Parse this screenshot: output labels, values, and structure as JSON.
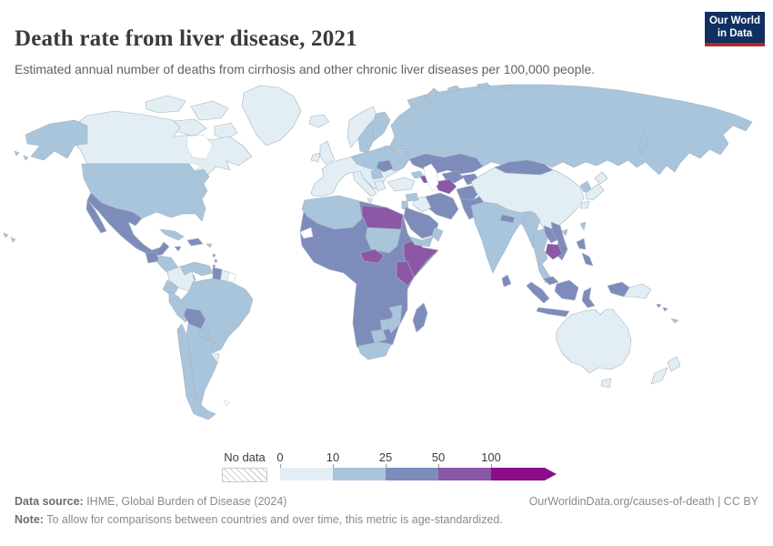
{
  "header": {
    "title": "Death rate from liver disease, 2021",
    "subtitle": "Estimated annual number of deaths from cirrhosis and other chronic liver diseases per 100,000 people.",
    "logo_line1": "Our World",
    "logo_line2": "in Data",
    "logo_bg": "#103061",
    "logo_accent": "#b02a27"
  },
  "legend": {
    "no_data_label": "No data",
    "tick_labels": [
      "0",
      "10",
      "25",
      "50",
      "100"
    ]
  },
  "chart_data": {
    "type": "choropleth",
    "title": "Death rate from liver disease, 2021",
    "unit": "deaths from cirrhosis and other chronic liver diseases per 100,000 people (age-standardized)",
    "year": 2021,
    "legend_position": "bottom",
    "bins": [
      {
        "label": "0-10",
        "color": "#e3eef4"
      },
      {
        "label": "10-25",
        "color": "#a8c5dc"
      },
      {
        "label": "25-50",
        "color": "#7e8cbb"
      },
      {
        "label": "50-100",
        "color": "#8a58a5"
      },
      {
        "label": "100+",
        "color": "#8a0e8b"
      }
    ],
    "no_data_color": "#ffffff",
    "regions": {
      "Greenland": "0-10",
      "Canada": "0-10",
      "United States": "10-25",
      "Mexico": "25-50",
      "Guatemala": "25-50",
      "Honduras": "10-25",
      "Panama": "10-25",
      "Cuba": "10-25",
      "Jamaica": "25-50",
      "Haiti": "25-50",
      "Dominican Republic": "25-50",
      "Puerto Rico": "10-25",
      "Lesser Antilles": "25-50",
      "Venezuela": "10-25",
      "Colombia": "0-10",
      "Guyana": "25-50",
      "Suriname": "0-10",
      "French Guiana": "no-data",
      "Ecuador": "10-25",
      "Peru": "10-25",
      "Brazil": "10-25",
      "Bolivia": "25-50",
      "Paraguay": "10-25",
      "Uruguay": "0-10",
      "Argentina": "10-25",
      "Chile": "10-25",
      "Falkland Islands": "no-data",
      "Iceland": "0-10",
      "Ireland": "0-10",
      "United Kingdom": "0-10",
      "Norway": "0-10",
      "Sweden": "10-25",
      "Finland": "10-25",
      "Western Europe": "0-10",
      "Central & Eastern Europe": "10-25",
      "Romania": "25-50",
      "Balkans": "10-25",
      "Greece": "0-10",
      "Italy": "0-10",
      "Turkey": "0-10",
      "Georgia": "10-25",
      "Azerbaijan": "50-100",
      "Russia": "10-25",
      "Kazakhstan": "25-50",
      "Uzbekistan": "25-50",
      "Turkmenistan": "50-100",
      "Kyrgyzstan": "25-50",
      "Iran": "25-50",
      "Iraq": "0-10",
      "Syria": "10-25",
      "Jordan": "10-25",
      "Saudi Arabia": "25-50",
      "Yemen": "10-25",
      "Oman": "10-25",
      "Afghanistan": "25-50",
      "Pakistan": "25-50",
      "India": "10-25",
      "Nepal": "25-50",
      "Bangladesh": "10-25",
      "Sri Lanka": "25-50",
      "China": "0-10",
      "Hainan": "10-25",
      "Mongolia": "25-50",
      "North Korea": "10-25",
      "South Korea": "0-10",
      "Japan": "0-10",
      "Taiwan": "10-25",
      "Myanmar": "10-25",
      "Thailand": "10-25",
      "Laos": "25-50",
      "Vietnam": "25-50",
      "Cambodia": "50-100",
      "Malaysia": "25-50",
      "Indonesia": "25-50",
      "Philippines": "25-50",
      "Papua New Guinea": "0-10",
      "Solomon Islands": "25-50",
      "New Caledonia": "10-25",
      "Australia": "0-10",
      "New Zealand": "0-10",
      "North Africa": "10-25",
      "Western Sahara": "no-data",
      "Egypt": "50-100",
      "Sudan": "10-25",
      "West and Central Africa": "25-50",
      "Ethiopia": "25-50",
      "Somalia": "50-100",
      "Kenya": "50-100",
      "Central African Republic": "50-100",
      "Botswana": "10-25",
      "Zimbabwe": "10-25",
      "Mozambique": "10-25",
      "South Africa": "10-25",
      "Madagascar": "25-50"
    }
  },
  "footer": {
    "source_label": "Data source:",
    "source_text": " IHME, Global Burden of Disease (2024)",
    "note_label": "Note:",
    "note_text": " To allow for comparisons between countries and over time, this metric is age-standardized.",
    "link_text": "OurWorldinData.org/causes-of-death | CC BY"
  }
}
